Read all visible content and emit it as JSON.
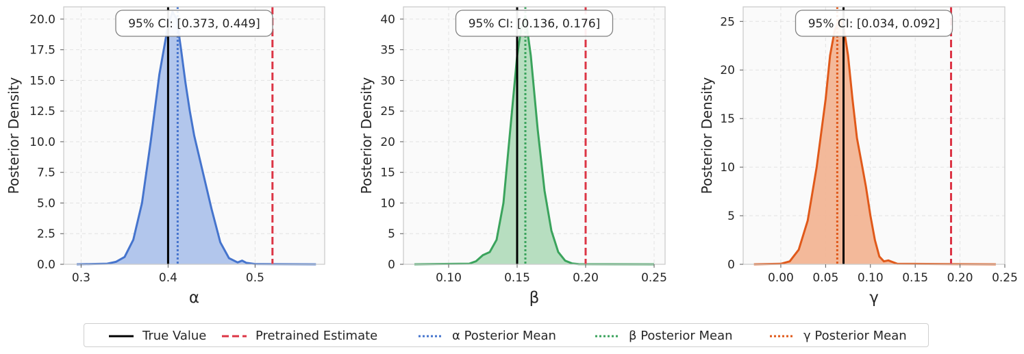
{
  "chart_data": [
    {
      "type": "area",
      "xlabel": "α",
      "ylabel": "Posterior Density",
      "xlim": [
        0.28,
        0.58
      ],
      "ylim": [
        0,
        21
      ],
      "xticks": [
        0.3,
        0.4,
        0.5
      ],
      "xtick_labels": [
        "0.3",
        "0.4",
        "0.5"
      ],
      "yticks": [
        0,
        2.5,
        5,
        7.5,
        10,
        12.5,
        15,
        17.5,
        20
      ],
      "ytick_labels": [
        "0.0",
        "2.5",
        "5.0",
        "7.5",
        "10.0",
        "12.5",
        "15.0",
        "17.5",
        "20.0"
      ],
      "color": "#4574cd",
      "fill": "#aec3eb",
      "true_value": 0.4,
      "pretrained_estimate": 0.52,
      "posterior_mean": 0.411,
      "ci_label": "95% CI: [0.373, 0.449]",
      "density": {
        "x": [
          0.295,
          0.33,
          0.34,
          0.35,
          0.36,
          0.37,
          0.38,
          0.39,
          0.4,
          0.405,
          0.41,
          0.415,
          0.42,
          0.425,
          0.43,
          0.44,
          0.45,
          0.46,
          0.47,
          0.48,
          0.485,
          0.49,
          0.5,
          0.57
        ],
        "y": [
          0,
          0.05,
          0.2,
          0.6,
          2.0,
          5.0,
          10.0,
          15.5,
          19.5,
          20.6,
          20.0,
          17.5,
          14.8,
          12.5,
          10.5,
          7.5,
          4.5,
          1.8,
          0.5,
          0.15,
          0.3,
          0.12,
          0.02,
          0
        ]
      }
    },
    {
      "type": "area",
      "xlabel": "β",
      "ylabel": "Posterior Density",
      "xlim": [
        0.067,
        0.258
      ],
      "ylim": [
        0,
        42
      ],
      "xticks": [
        0.1,
        0.15,
        0.2,
        0.25
      ],
      "xtick_labels": [
        "0.10",
        "0.15",
        "0.20",
        "0.25"
      ],
      "yticks": [
        0,
        5,
        10,
        15,
        20,
        25,
        30,
        35,
        40
      ],
      "ytick_labels": [
        "0",
        "5",
        "10",
        "15",
        "20",
        "25",
        "30",
        "35",
        "40"
      ],
      "color": "#3aa35c",
      "fill": "#b3dcbd",
      "true_value": 0.15,
      "pretrained_estimate": 0.2,
      "posterior_mean": 0.156,
      "ci_label": "95% CI: [0.136, 0.176]",
      "density": {
        "x": [
          0.075,
          0.115,
          0.12,
          0.125,
          0.13,
          0.135,
          0.14,
          0.145,
          0.15,
          0.153,
          0.156,
          0.16,
          0.165,
          0.17,
          0.175,
          0.18,
          0.185,
          0.19,
          0.195,
          0.25
        ],
        "y": [
          0,
          0.1,
          0.5,
          1.5,
          2.0,
          4.0,
          10.0,
          22.0,
          34.0,
          38.5,
          40.5,
          34.0,
          22.0,
          12.0,
          5.5,
          2.0,
          0.6,
          0.15,
          0.02,
          0
        ]
      }
    },
    {
      "type": "area",
      "xlabel": "γ",
      "ylabel": "Posterior Density",
      "xlim": [
        -0.042,
        0.25
      ],
      "ylim": [
        0,
        26.5
      ],
      "xticks": [
        0.0,
        0.05,
        0.1,
        0.15,
        0.2,
        0.25
      ],
      "xtick_labels": [
        "0.00",
        "0.05",
        "0.10",
        "0.15",
        "0.20",
        "0.25"
      ],
      "yticks": [
        0,
        5,
        10,
        15,
        20,
        25
      ],
      "ytick_labels": [
        "0",
        "5",
        "10",
        "15",
        "20",
        "25"
      ],
      "color": "#e0591a",
      "fill": "#f2b595",
      "true_value": 0.07,
      "pretrained_estimate": 0.19,
      "posterior_mean": 0.063,
      "ci_label": "95% CI: [0.034, 0.092]",
      "density": {
        "x": [
          -0.03,
          0.0,
          0.01,
          0.02,
          0.03,
          0.04,
          0.05,
          0.055,
          0.06,
          0.065,
          0.07,
          0.075,
          0.08,
          0.085,
          0.09,
          0.095,
          0.1,
          0.105,
          0.11,
          0.115,
          0.12,
          0.13,
          0.24
        ],
        "y": [
          0,
          0.05,
          0.3,
          1.5,
          4.5,
          10.0,
          17.0,
          21.5,
          24.0,
          25.2,
          24.5,
          21.5,
          17.0,
          13.0,
          10.5,
          8.0,
          5.0,
          2.5,
          0.8,
          0.3,
          0.4,
          0.05,
          0
        ]
      }
    }
  ],
  "legend": [
    {
      "label": "True Value",
      "style": "solid",
      "color": "#000000"
    },
    {
      "label": "Pretrained Estimate",
      "style": "dashed",
      "color": "#dc3545"
    },
    {
      "label": "α Posterior Mean",
      "style": "dotted",
      "color": "#4574cd"
    },
    {
      "label": "β Posterior Mean",
      "style": "dotted",
      "color": "#3aa35c"
    },
    {
      "label": "γ  Posterior Mean",
      "style": "dotted",
      "color": "#e0591a"
    }
  ]
}
